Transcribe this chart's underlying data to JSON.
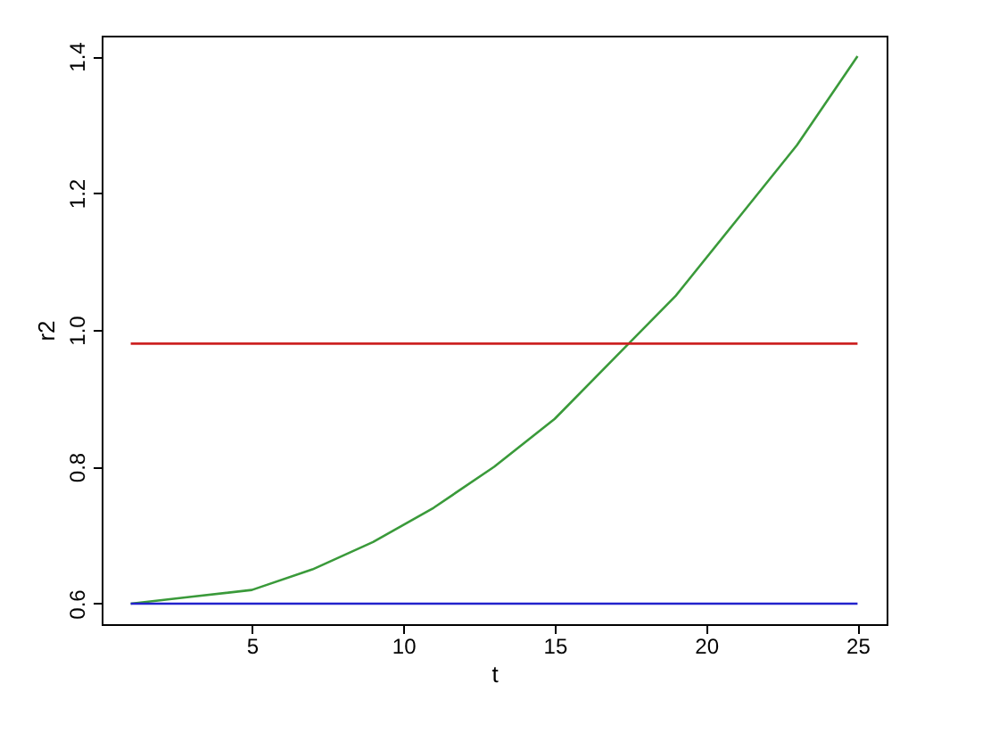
{
  "chart_data": {
    "type": "line",
    "xlabel": "t",
    "ylabel": "r2",
    "xlim": [
      0.04,
      25.96
    ],
    "ylim": [
      0.57,
      1.43
    ],
    "xticks": [
      5,
      10,
      15,
      20,
      25
    ],
    "yticks": [
      0.6,
      0.8,
      {
        "value": 1,
        "label": "1.0"
      },
      1.2,
      1.4
    ],
    "grid": false,
    "legend": false,
    "marker": "none",
    "line_style": "solid",
    "x": [
      1,
      3,
      5,
      7,
      9,
      11,
      13,
      15,
      17,
      19,
      21,
      23,
      25
    ],
    "series": [
      {
        "color": "#3a9a3a",
        "values": [
          0.6,
          0.61,
          0.62,
          0.65,
          0.69,
          0.74,
          0.8,
          0.87,
          0.96,
          1.05,
          1.16,
          1.27,
          1.4
        ]
      },
      {
        "color": "#cc2222",
        "values": [
          0.98,
          0.98,
          0.98,
          0.98,
          0.98,
          0.98,
          0.98,
          0.98,
          0.98,
          0.98,
          0.98,
          0.98,
          0.98
        ]
      },
      {
        "color": "#2222cc",
        "values": [
          0.6,
          0.6,
          0.6,
          0.6,
          0.6,
          0.6,
          0.6,
          0.6,
          0.6,
          0.6,
          0.6,
          0.6,
          0.6
        ]
      }
    ]
  }
}
